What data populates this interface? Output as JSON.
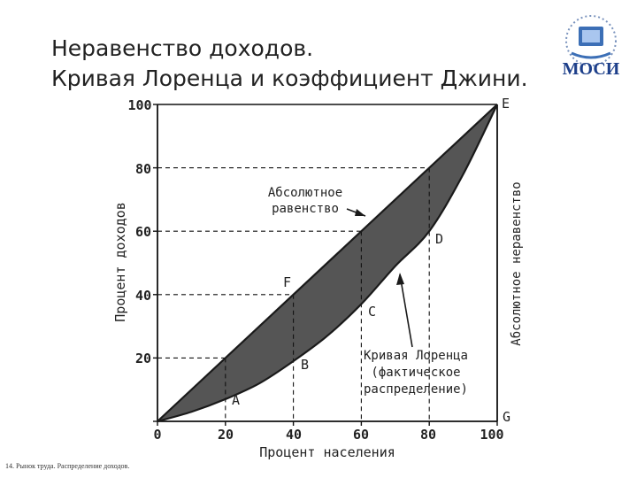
{
  "slide": {
    "title_line1": "Неравенство доходов.",
    "title_line2": "Кривая Лоренца и коэффициент Джини.",
    "logo_text": "МОСИ",
    "footer": "14. Рынок труда. Распределение доходов."
  },
  "chart_data": {
    "type": "area",
    "xlabel": "Процент населения",
    "ylabel": "Процент доходов",
    "xlim": [
      0,
      100
    ],
    "ylim": [
      0,
      100
    ],
    "x_ticks": [
      "0",
      "20",
      "40",
      "60",
      "80",
      "100"
    ],
    "y_ticks": [
      "20",
      "40",
      "60",
      "80",
      "100"
    ],
    "series": [
      {
        "x": [
          0,
          20,
          40,
          60,
          80,
          100
        ],
        "values": [
          0,
          20,
          40,
          60,
          80,
          100
        ]
      },
      {
        "x": [
          0,
          10,
          20,
          30,
          40,
          50,
          60,
          70,
          80,
          90,
          100
        ],
        "values": [
          0,
          3,
          7,
          12,
          19,
          27,
          37,
          49,
          60,
          78,
          100
        ]
      }
    ],
    "points": {
      "A": "A",
      "B": "B",
      "C": "C",
      "D": "D",
      "E": "E",
      "F": "F",
      "G": "G"
    },
    "annotations": {
      "equality": [
        "Абсолютное",
        "равенство"
      ],
      "lorenz": [
        "Кривая Лоренца",
        "(фактическое",
        "распределение)"
      ],
      "inequality": "Абсолютное неравенство"
    },
    "colors": {
      "fill": "#555555",
      "line": "#1a1a1a"
    },
    "grid": false
  }
}
